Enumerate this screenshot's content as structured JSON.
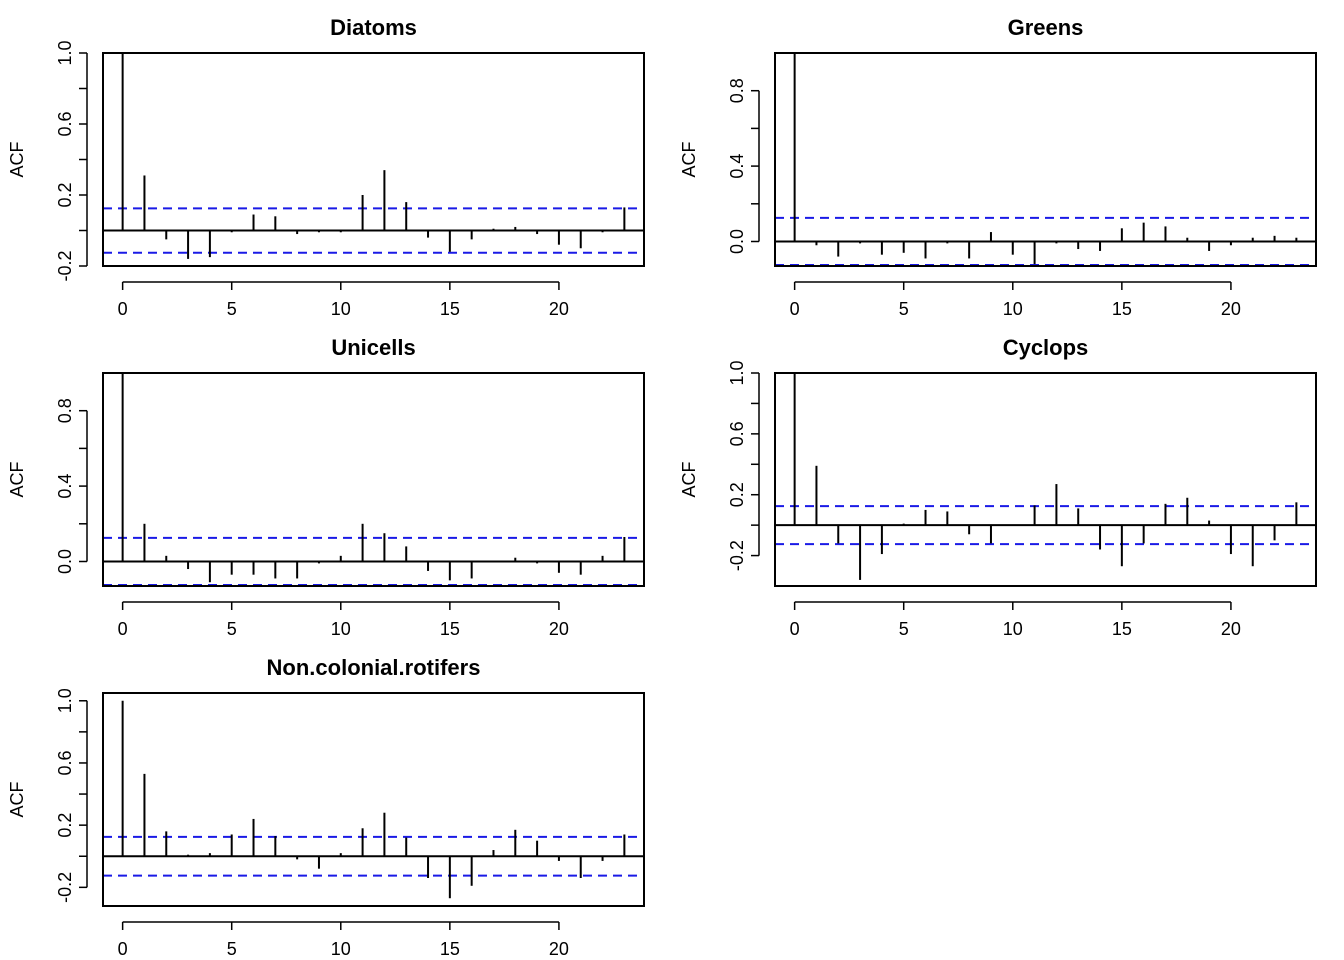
{
  "chart_data": [
    {
      "type": "bar",
      "title": "Diatoms",
      "ylabel": "ACF",
      "xlabel": "",
      "xlim": [
        -0.9,
        23.9
      ],
      "ylim": [
        -0.2,
        1.0
      ],
      "xticks": [
        0,
        5,
        10,
        15,
        20
      ],
      "yticks": [
        -0.2,
        0.2,
        0.6,
        1.0
      ],
      "yticklabels": [
        "-0.2",
        "0.2",
        "0.6",
        "1.0"
      ],
      "conf": 0.125,
      "lags": [
        0,
        1,
        2,
        3,
        4,
        5,
        6,
        7,
        8,
        9,
        10,
        11,
        12,
        13,
        14,
        15,
        16,
        17,
        18,
        19,
        20,
        21,
        22,
        23
      ],
      "values": [
        1.0,
        0.31,
        -0.05,
        -0.16,
        -0.15,
        -0.01,
        0.09,
        0.08,
        -0.02,
        -0.01,
        -0.01,
        0.2,
        0.34,
        0.16,
        -0.04,
        -0.12,
        -0.05,
        0.01,
        0.02,
        -0.02,
        -0.08,
        -0.1,
        -0.01,
        0.13
      ]
    },
    {
      "type": "bar",
      "title": "Greens",
      "ylabel": "ACF",
      "xlabel": "",
      "xlim": [
        -0.9,
        23.9
      ],
      "ylim": [
        -0.13,
        1.0
      ],
      "xticks": [
        0,
        5,
        10,
        15,
        20
      ],
      "yticks": [
        0.0,
        0.4,
        0.8
      ],
      "yticklabels": [
        "0.0",
        "0.4",
        "0.8"
      ],
      "conf": 0.125,
      "lags": [
        0,
        1,
        2,
        3,
        4,
        5,
        6,
        7,
        8,
        9,
        10,
        11,
        12,
        13,
        14,
        15,
        16,
        17,
        18,
        19,
        20,
        21,
        22,
        23
      ],
      "values": [
        1.0,
        -0.02,
        -0.08,
        -0.01,
        -0.07,
        -0.06,
        -0.09,
        -0.01,
        -0.09,
        0.05,
        -0.07,
        -0.12,
        -0.01,
        -0.04,
        -0.05,
        0.07,
        0.1,
        0.08,
        0.02,
        -0.05,
        -0.02,
        0.02,
        0.03,
        0.02
      ]
    },
    {
      "type": "bar",
      "title": "Unicells",
      "ylabel": "ACF",
      "xlabel": "",
      "xlim": [
        -0.9,
        23.9
      ],
      "ylim": [
        -0.13,
        1.0
      ],
      "xticks": [
        0,
        5,
        10,
        15,
        20
      ],
      "yticks": [
        0.0,
        0.4,
        0.8
      ],
      "yticklabels": [
        "0.0",
        "0.4",
        "0.8"
      ],
      "conf": 0.125,
      "lags": [
        0,
        1,
        2,
        3,
        4,
        5,
        6,
        7,
        8,
        9,
        10,
        11,
        12,
        13,
        14,
        15,
        16,
        17,
        18,
        19,
        20,
        21,
        22,
        23
      ],
      "values": [
        1.0,
        0.2,
        0.03,
        -0.04,
        -0.11,
        -0.07,
        -0.07,
        -0.09,
        -0.09,
        -0.01,
        0.03,
        0.2,
        0.15,
        0.08,
        -0.05,
        -0.1,
        -0.09,
        0.0,
        0.02,
        -0.01,
        -0.06,
        -0.07,
        0.03,
        0.13
      ]
    },
    {
      "type": "bar",
      "title": "Cyclops",
      "ylabel": "ACF",
      "xlabel": "",
      "xlim": [
        -0.9,
        23.9
      ],
      "ylim": [
        -0.4,
        1.0
      ],
      "xticks": [
        0,
        5,
        10,
        15,
        20
      ],
      "yticks": [
        -0.2,
        0.2,
        0.6,
        1.0
      ],
      "yticklabels": [
        "-0.2",
        "0.2",
        "0.6",
        "1.0"
      ],
      "conf": 0.125,
      "lags": [
        0,
        1,
        2,
        3,
        4,
        5,
        6,
        7,
        8,
        9,
        10,
        11,
        12,
        13,
        14,
        15,
        16,
        17,
        18,
        19,
        20,
        21,
        22,
        23
      ],
      "values": [
        1.0,
        0.39,
        -0.12,
        -0.36,
        -0.19,
        0.01,
        0.1,
        0.09,
        -0.06,
        -0.12,
        0.0,
        0.13,
        0.27,
        0.11,
        -0.16,
        -0.27,
        -0.12,
        0.14,
        0.18,
        0.03,
        -0.19,
        -0.27,
        -0.1,
        0.15
      ]
    },
    {
      "type": "bar",
      "title": "Non.colonial.rotifers",
      "ylabel": "ACF",
      "xlabel": "",
      "xlim": [
        -0.9,
        23.9
      ],
      "ylim": [
        -0.32,
        1.05
      ],
      "xticks": [
        0,
        5,
        10,
        15,
        20
      ],
      "yticks": [
        -0.2,
        0.2,
        0.6,
        1.0
      ],
      "yticklabels": [
        "-0.2",
        "0.2",
        "0.6",
        "1.0"
      ],
      "conf": 0.125,
      "lags": [
        0,
        1,
        2,
        3,
        4,
        5,
        6,
        7,
        8,
        9,
        10,
        11,
        12,
        13,
        14,
        15,
        16,
        17,
        18,
        19,
        20,
        21,
        22,
        23
      ],
      "values": [
        1.0,
        0.53,
        0.16,
        0.01,
        0.02,
        0.14,
        0.24,
        0.13,
        -0.02,
        -0.08,
        0.02,
        0.18,
        0.28,
        0.12,
        -0.14,
        -0.27,
        -0.19,
        0.04,
        0.17,
        0.1,
        -0.03,
        -0.14,
        -0.03,
        0.14
      ]
    }
  ]
}
